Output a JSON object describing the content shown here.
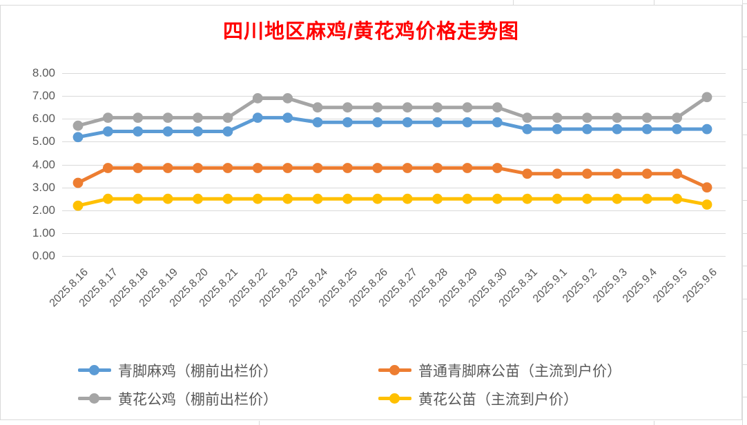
{
  "chart_data": {
    "type": "line",
    "title": "四川地区麻鸡/黄花鸡价格走势图",
    "title_color": "#FF0000",
    "axis_label_color": "#595959",
    "gridline_color": "#D9D9D9",
    "grid": true,
    "legend_position": "bottom",
    "ylim": [
      0,
      8
    ],
    "ytick_step": 1,
    "ytick_labels": [
      "8.00",
      "7.00",
      "6.00",
      "5.00",
      "4.00",
      "3.00",
      "2.00",
      "1.00",
      "0.00"
    ],
    "categories": [
      "2025.8.16",
      "2025.8.17",
      "2025.8.18",
      "2025.8.19",
      "2025.8.20",
      "2025.8.21",
      "2025.8.22",
      "2025.8.23",
      "2025.8.24",
      "2025.8.25",
      "2025.8.26",
      "2025.8.27",
      "2025.8.28",
      "2025.8.29",
      "2025.8.30",
      "2025.8.31",
      "2025.9.1",
      "2025.9.2",
      "2025.9.3",
      "2025.9.4",
      "2025.9.5",
      "2025.9.6"
    ],
    "series": [
      {
        "name": "青脚麻鸡（棚前出栏价）",
        "color": "#5B9BD5",
        "values": [
          5.2,
          5.45,
          5.45,
          5.45,
          5.45,
          5.45,
          6.05,
          6.05,
          5.85,
          5.85,
          5.85,
          5.85,
          5.85,
          5.85,
          5.85,
          5.55,
          5.55,
          5.55,
          5.55,
          5.55,
          5.55,
          5.55
        ]
      },
      {
        "name": "普通青脚麻公苗（主流到户价）",
        "color": "#ED7D31",
        "values": [
          3.2,
          3.85,
          3.85,
          3.85,
          3.85,
          3.85,
          3.85,
          3.85,
          3.85,
          3.85,
          3.85,
          3.85,
          3.85,
          3.85,
          3.85,
          3.6,
          3.6,
          3.6,
          3.6,
          3.6,
          3.6,
          3.0
        ]
      },
      {
        "name": "黄花公鸡（棚前出栏价）",
        "color": "#A5A5A5",
        "values": [
          5.7,
          6.05,
          6.05,
          6.05,
          6.05,
          6.05,
          6.9,
          6.9,
          6.5,
          6.5,
          6.5,
          6.5,
          6.5,
          6.5,
          6.5,
          6.05,
          6.05,
          6.05,
          6.05,
          6.05,
          6.05,
          6.95
        ]
      },
      {
        "name": "黄花公苗（主流到户价）",
        "color": "#FFC000",
        "values": [
          2.2,
          2.5,
          2.5,
          2.5,
          2.5,
          2.5,
          2.5,
          2.5,
          2.5,
          2.5,
          2.5,
          2.5,
          2.5,
          2.5,
          2.5,
          2.5,
          2.5,
          2.5,
          2.5,
          2.5,
          2.5,
          2.25
        ]
      }
    ]
  }
}
